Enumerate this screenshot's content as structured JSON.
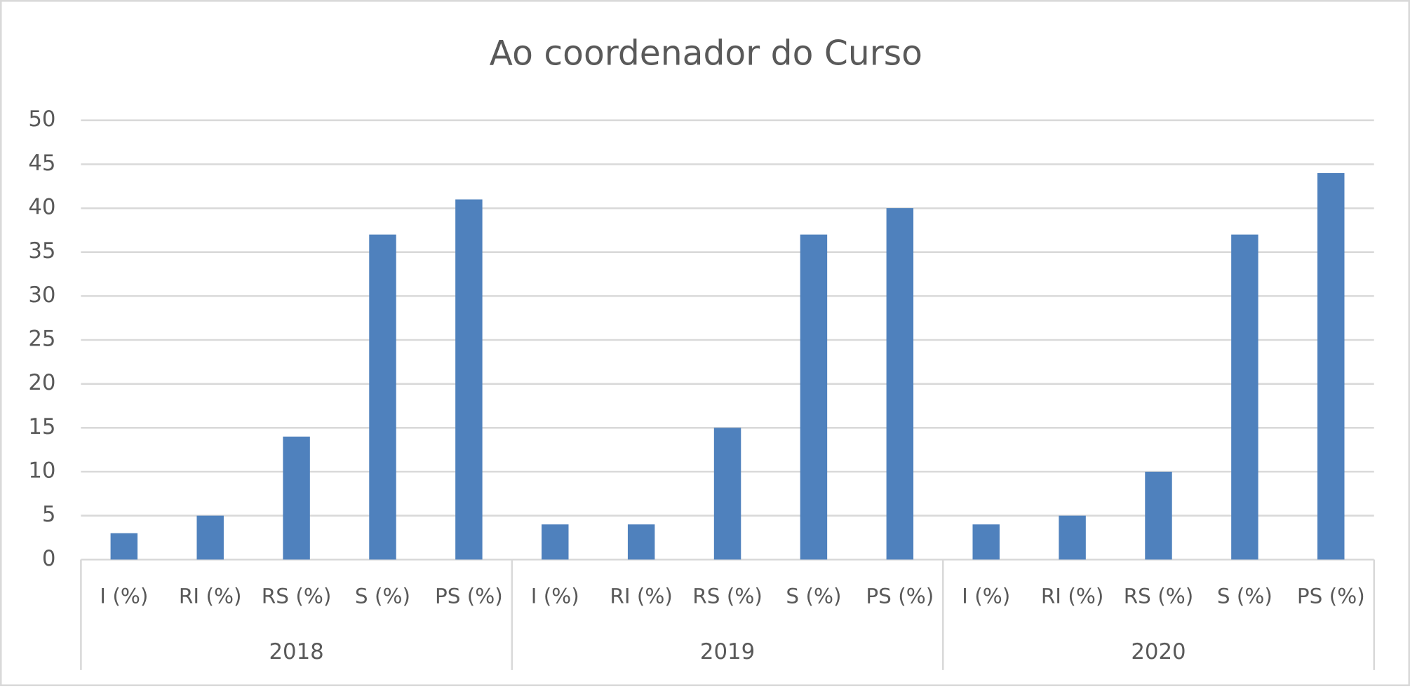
{
  "chart_data": {
    "type": "bar",
    "title": "Ao coordenador do Curso",
    "categories": [
      "I (%)",
      "RI (%)",
      "RS  (%)",
      "S (%)",
      "PS (%)",
      "I (%)",
      "RI (%)",
      "RS  (%)",
      "S (%)",
      "PS (%)",
      "I (%)",
      "RI (%)",
      "RS  (%)",
      "S (%)",
      "PS (%)"
    ],
    "groups": [
      "2018",
      "2019",
      "2020"
    ],
    "values": [
      3,
      5,
      14,
      37,
      41,
      4,
      4,
      15,
      37,
      40,
      4,
      5,
      10,
      37,
      44
    ],
    "color": "#4f81bd",
    "ylim": [
      0,
      50
    ],
    "yticks": [
      0,
      5,
      10,
      15,
      20,
      25,
      30,
      35,
      40,
      45,
      50
    ],
    "grid": true
  }
}
